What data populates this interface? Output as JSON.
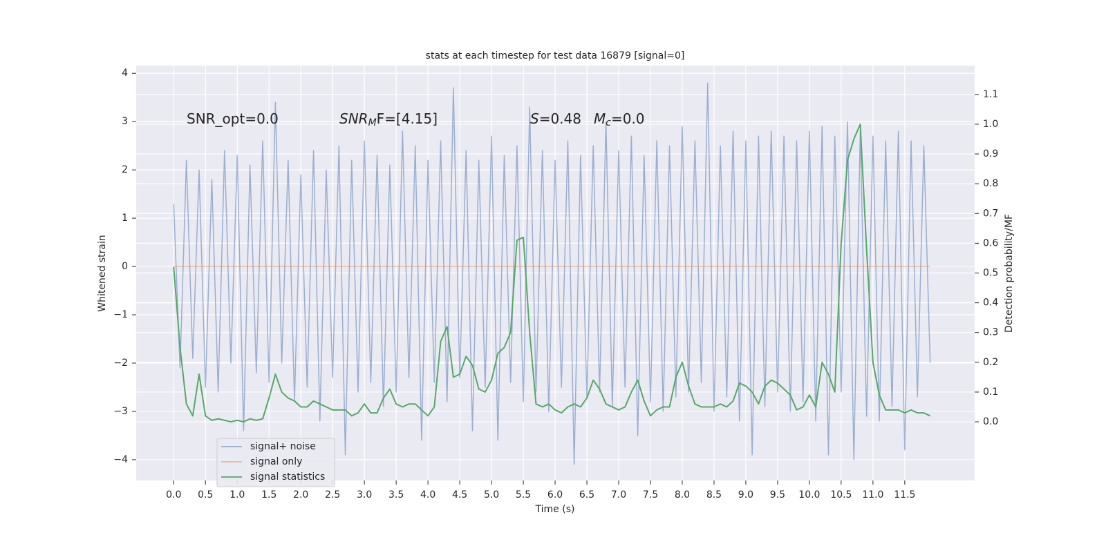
{
  "chart_data": {
    "type": "line",
    "title": "stats at each timestep for test data 16879 [signal=0]",
    "xlabel": "Time (s)",
    "ylabel": "Whitened strain",
    "y2label": "Detection probability/MF",
    "annotations": [
      [
        "SNR_opt=0.0"
      ],
      [
        "SNR",
        "M",
        "F=[4.15]"
      ],
      [
        "S",
        "=0.48"
      ],
      [
        "M",
        "c",
        "=0.0"
      ]
    ],
    "grid": true,
    "legend": "lower left",
    "xlim": [
      -0.59,
      12.6
    ],
    "xticks": [
      {
        "value": 0,
        "label": "0.0"
      },
      0.5,
      {
        "value": 1,
        "label": "1.0"
      },
      1.5,
      {
        "value": 2,
        "label": "2.0"
      },
      2.5,
      {
        "value": 3,
        "label": "3.0"
      },
      3.5,
      {
        "value": 4,
        "label": "4.0"
      },
      4.5,
      {
        "value": 5,
        "label": "5.0"
      },
      5.5,
      {
        "value": 6,
        "label": "6.0"
      },
      6.5,
      {
        "value": 7,
        "label": "7.0"
      },
      7.5,
      {
        "value": 8,
        "label": "8.0"
      },
      8.5,
      {
        "value": 9,
        "label": "9.0"
      },
      9.5,
      {
        "value": 10,
        "label": "10.0"
      },
      10.5,
      {
        "value": 11,
        "label": "11.0"
      },
      11.5
    ],
    "ylim": [
      -4.43,
      4.16
    ],
    "yticks": [
      {
        "value": -4,
        "label": "−4"
      },
      {
        "value": -3,
        "label": "−3"
      },
      {
        "value": -2,
        "label": "−2"
      },
      {
        "value": -1,
        "label": "−1"
      },
      0,
      1,
      2,
      3,
      4
    ],
    "y2lim": [
      -0.197,
      1.197
    ],
    "y2ticks": [
      {
        "value": 0,
        "label": "0.0"
      },
      0.1,
      0.2,
      0.3,
      0.4,
      0.5,
      0.6,
      0.7,
      0.8,
      0.9,
      {
        "value": 1,
        "label": "1.0"
      },
      1.1
    ],
    "x": [
      0,
      0.1,
      0.2,
      0.3,
      0.4,
      0.5,
      0.6,
      0.7,
      0.8,
      0.9,
      1,
      1.1,
      1.2,
      1.3,
      1.4,
      1.5,
      1.6,
      1.7,
      1.8,
      1.9,
      2,
      2.1,
      2.2,
      2.3,
      2.4,
      2.5,
      2.6,
      2.7,
      2.8,
      2.9,
      3,
      3.1,
      3.2,
      3.3,
      3.4,
      3.5,
      3.6,
      3.7,
      3.8,
      3.9,
      4,
      4.1,
      4.2,
      4.3,
      4.4,
      4.5,
      4.6,
      4.7,
      4.8,
      4.9,
      5,
      5.1,
      5.2,
      5.3,
      5.4,
      5.5,
      5.6,
      5.7,
      5.8,
      5.9,
      6,
      6.1,
      6.2,
      6.3,
      6.4,
      6.5,
      6.6,
      6.7,
      6.8,
      6.9,
      7,
      7.1,
      7.2,
      7.3,
      7.4,
      7.5,
      7.6,
      7.7,
      7.8,
      7.9,
      8,
      8.1,
      8.2,
      8.3,
      8.4,
      8.5,
      8.6,
      8.7,
      8.8,
      8.9,
      9,
      9.1,
      9.2,
      9.3,
      9.4,
      9.5,
      9.6,
      9.7,
      9.8,
      9.9,
      10,
      10.1,
      10.2,
      10.3,
      10.4,
      10.5,
      10.6,
      10.7,
      10.8,
      10.9,
      11,
      11.1,
      11.2,
      11.3,
      11.4,
      11.5,
      11.6,
      11.7,
      11.8,
      11.9
    ],
    "series": [
      {
        "name": "signal+ noise",
        "color": "#4c72b0",
        "opacity": 0.5,
        "values": [
          1.3,
          -2.1,
          2.2,
          -1.9,
          2.0,
          -2.5,
          1.8,
          -2.6,
          2.4,
          -2.0,
          2.3,
          -3.4,
          2.1,
          -2.2,
          2.6,
          -2.4,
          3.4,
          -2.0,
          2.2,
          -2.8,
          1.9,
          -2.5,
          2.4,
          -3.2,
          2.0,
          -2.3,
          2.5,
          -3.9,
          2.2,
          -2.6,
          2.6,
          -2.4,
          2.3,
          -2.9,
          2.1,
          -2.6,
          2.8,
          -2.3,
          2.5,
          -3.6,
          2.2,
          -2.4,
          2.6,
          -2.8,
          3.7,
          -2.3,
          2.4,
          -3.4,
          2.2,
          -2.5,
          2.7,
          -3.6,
          2.3,
          -2.4,
          2.5,
          -2.8,
          3.3,
          -2.6,
          2.4,
          -3.0,
          2.2,
          -2.5,
          2.6,
          -4.1,
          2.3,
          -2.7,
          2.5,
          -2.6,
          3.0,
          -2.9,
          2.4,
          -2.5,
          2.7,
          -3.5,
          2.3,
          -2.8,
          2.6,
          -3.0,
          2.5,
          -2.7,
          2.9,
          -2.6,
          2.6,
          -2.4,
          3.8,
          -3.0,
          2.5,
          -2.7,
          2.8,
          -3.2,
          2.6,
          -3.9,
          2.7,
          -2.9,
          2.8,
          -2.6,
          2.7,
          -3.0,
          2.6,
          -2.8,
          2.8,
          -3.2,
          2.9,
          -3.9,
          2.7,
          -2.6,
          3.0,
          -4.0,
          2.8,
          -3.1,
          2.7,
          -3.2,
          2.6,
          -2.9,
          2.8,
          -3.8,
          2.6,
          -2.7,
          2.5,
          -2.0
        ]
      },
      {
        "name": "signal only",
        "color": "#dd8452",
        "opacity": 0.5,
        "values": [
          0,
          0,
          0,
          0,
          0,
          0,
          0,
          0,
          0,
          0,
          0,
          0,
          0,
          0,
          0,
          0,
          0,
          0,
          0,
          0,
          0,
          0,
          0,
          0,
          0,
          0,
          0,
          0,
          0,
          0,
          0,
          0,
          0,
          0,
          0,
          0,
          0,
          0,
          0,
          0,
          0,
          0,
          0,
          0,
          0,
          0,
          0,
          0,
          0,
          0,
          0,
          0,
          0,
          0,
          0,
          0,
          0,
          0,
          0,
          0,
          0,
          0,
          0,
          0,
          0,
          0,
          0,
          0,
          0,
          0,
          0,
          0,
          0,
          0,
          0,
          0,
          0,
          0,
          0,
          0,
          0,
          0,
          0,
          0,
          0,
          0,
          0,
          0,
          0,
          0,
          0,
          0,
          0,
          0,
          0,
          0,
          0,
          0,
          0,
          0,
          0,
          0,
          0,
          0,
          0,
          0,
          0,
          0,
          0,
          0,
          0,
          0,
          0,
          0,
          0,
          0,
          0,
          0,
          0,
          0
        ]
      },
      {
        "name": "signal statistics",
        "color": "#55a868",
        "opacity": 1,
        "axis": "y2",
        "values": [
          0.52,
          0.25,
          0.06,
          0.02,
          0.16,
          0.02,
          0.005,
          0.01,
          0.005,
          0.0,
          0.005,
          0.0,
          0.01,
          0.005,
          0.01,
          0.08,
          0.16,
          0.1,
          0.08,
          0.07,
          0.05,
          0.05,
          0.07,
          0.06,
          0.05,
          0.04,
          0.04,
          0.04,
          0.02,
          0.03,
          0.06,
          0.03,
          0.03,
          0.08,
          0.11,
          0.06,
          0.05,
          0.06,
          0.06,
          0.04,
          0.02,
          0.05,
          0.27,
          0.32,
          0.15,
          0.16,
          0.22,
          0.19,
          0.11,
          0.1,
          0.14,
          0.23,
          0.25,
          0.3,
          0.61,
          0.62,
          0.3,
          0.06,
          0.05,
          0.06,
          0.04,
          0.03,
          0.05,
          0.06,
          0.05,
          0.08,
          0.14,
          0.11,
          0.06,
          0.05,
          0.04,
          0.05,
          0.1,
          0.14,
          0.07,
          0.02,
          0.04,
          0.05,
          0.05,
          0.15,
          0.2,
          0.12,
          0.06,
          0.05,
          0.05,
          0.05,
          0.06,
          0.05,
          0.07,
          0.13,
          0.12,
          0.1,
          0.06,
          0.12,
          0.14,
          0.13,
          0.11,
          0.09,
          0.04,
          0.05,
          0.09,
          0.05,
          0.2,
          0.16,
          0.1,
          0.6,
          0.88,
          0.95,
          1.0,
          0.58,
          0.2,
          0.09,
          0.04,
          0.04,
          0.04,
          0.03,
          0.04,
          0.03,
          0.03,
          0.02
        ]
      }
    ]
  }
}
